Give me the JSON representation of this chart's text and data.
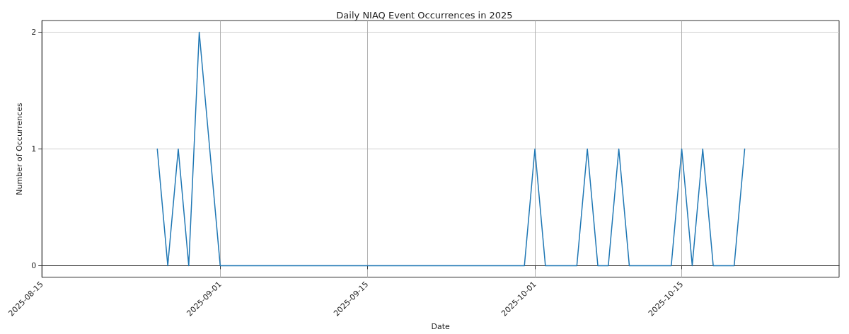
{
  "chart_data": {
    "type": "line",
    "title": "Daily NIAQ Event Occurrences in 2025",
    "xlabel": "Date",
    "ylabel": "Number of Occurrences",
    "x": [
      "2025-08-26",
      "2025-08-27",
      "2025-08-28",
      "2025-08-29",
      "2025-08-30",
      "2025-08-31",
      "2025-09-01",
      "2025-09-02",
      "2025-09-03",
      "2025-09-04",
      "2025-09-05",
      "2025-09-06",
      "2025-09-07",
      "2025-09-08",
      "2025-09-09",
      "2025-09-10",
      "2025-09-11",
      "2025-09-12",
      "2025-09-13",
      "2025-09-14",
      "2025-09-15",
      "2025-09-16",
      "2025-09-17",
      "2025-09-18",
      "2025-09-19",
      "2025-09-20",
      "2025-09-21",
      "2025-09-22",
      "2025-09-23",
      "2025-09-24",
      "2025-09-25",
      "2025-09-26",
      "2025-09-27",
      "2025-09-28",
      "2025-09-29",
      "2025-09-30",
      "2025-10-01",
      "2025-10-02",
      "2025-10-03",
      "2025-10-04",
      "2025-10-05",
      "2025-10-06",
      "2025-10-07",
      "2025-10-08",
      "2025-10-09",
      "2025-10-10",
      "2025-10-11",
      "2025-10-12",
      "2025-10-13",
      "2025-10-14",
      "2025-10-15",
      "2025-10-16",
      "2025-10-17",
      "2025-10-18",
      "2025-10-19",
      "2025-10-20",
      "2025-10-21"
    ],
    "series": [
      {
        "color": "#1f77b4",
        "values": [
          1,
          0,
          1,
          0,
          2,
          1,
          0,
          0,
          0,
          0,
          0,
          0,
          0,
          0,
          0,
          0,
          0,
          0,
          0,
          0,
          0,
          0,
          0,
          0,
          0,
          0,
          0,
          0,
          0,
          0,
          0,
          0,
          0,
          0,
          0,
          0,
          1,
          0,
          0,
          0,
          0,
          1,
          0,
          0,
          1,
          0,
          0,
          0,
          0,
          0,
          1,
          0,
          1,
          0,
          0,
          0,
          1
        ]
      }
    ],
    "xlim": [
      "2025-08-15",
      "2025-10-30"
    ],
    "xticks": [
      "2025-08-15",
      "2025-09-01",
      "2025-09-15",
      "2025-10-01",
      "2025-10-15"
    ],
    "ylim": [
      -0.1,
      2.1
    ],
    "yticks": [
      0,
      1,
      2
    ],
    "grid": true,
    "marker": "none",
    "line_style": "solid"
  }
}
